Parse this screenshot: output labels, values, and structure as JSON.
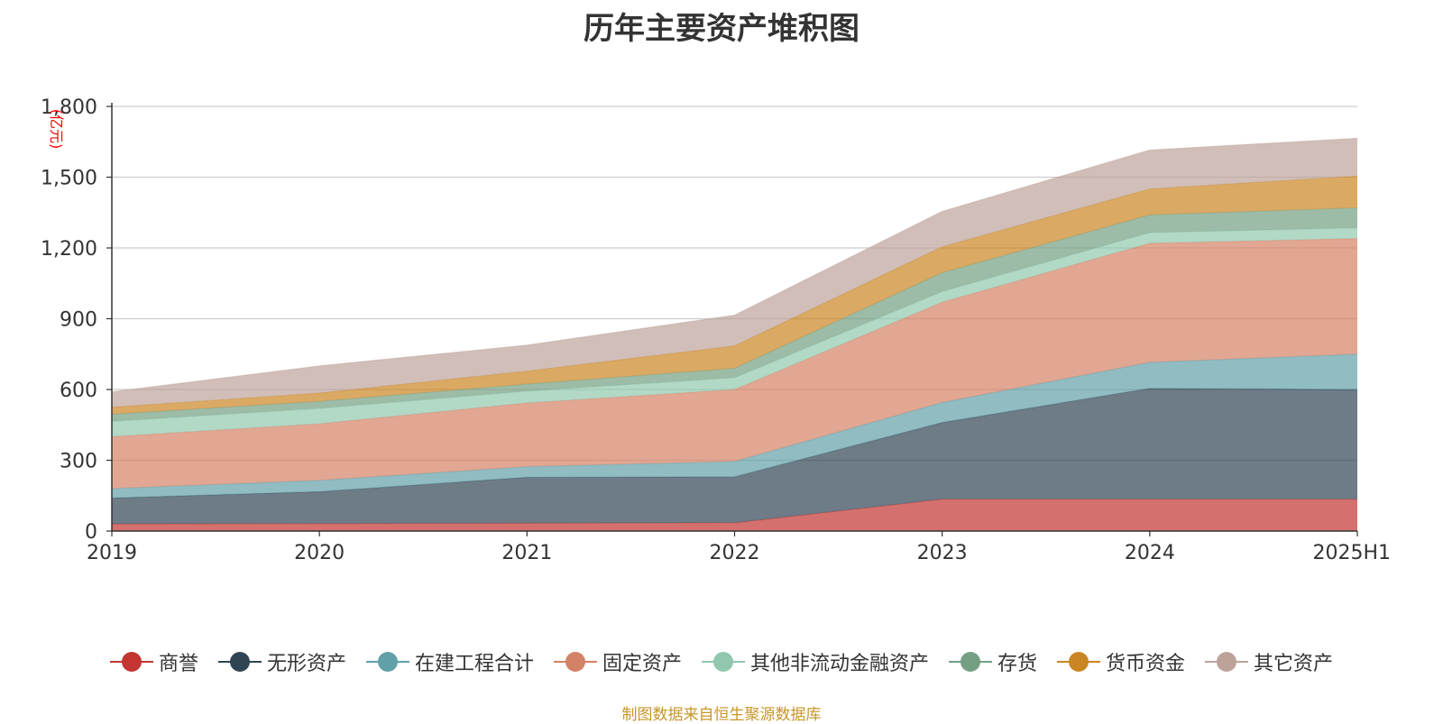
{
  "chart_data": {
    "type": "area",
    "title": "历年主要资产堆积图",
    "unit_label": "(亿元)",
    "categories": [
      "2019",
      "2020",
      "2021",
      "2022",
      "2023",
      "2024",
      "2025H1"
    ],
    "y_ticks": [
      "0",
      "300",
      "600",
      "900",
      "1,200",
      "1,500",
      "1,800"
    ],
    "ylim": [
      0,
      1800
    ],
    "grid": true,
    "stacked": true,
    "legend_position": "bottom",
    "series": [
      {
        "name": "商誉",
        "color": "#c23531",
        "values": [
          30,
          32,
          33,
          35,
          135,
          135,
          135
        ]
      },
      {
        "name": "无形资产",
        "color": "#2f4554",
        "values": [
          110,
          135,
          195,
          195,
          325,
          470,
          465
        ]
      },
      {
        "name": "在建工程合计",
        "color": "#61a0a8",
        "values": [
          40,
          48,
          45,
          65,
          85,
          110,
          150
        ]
      },
      {
        "name": "固定资产",
        "color": "#d48265",
        "values": [
          220,
          240,
          270,
          305,
          425,
          505,
          490
        ]
      },
      {
        "name": "其他非流动金融资产",
        "color": "#91c7ae",
        "values": [
          65,
          65,
          50,
          50,
          45,
          45,
          45
        ]
      },
      {
        "name": "存货",
        "color": "#749f83",
        "values": [
          30,
          30,
          30,
          40,
          80,
          75,
          85
        ]
      },
      {
        "name": "货币资金",
        "color": "#ca8622",
        "values": [
          30,
          35,
          55,
          95,
          110,
          110,
          135
        ]
      },
      {
        "name": "其它资产",
        "color": "#bda29a",
        "values": [
          65,
          115,
          110,
          130,
          150,
          165,
          160
        ]
      }
    ]
  },
  "footer": {
    "source": "制图数据来自恒生聚源数据库"
  }
}
